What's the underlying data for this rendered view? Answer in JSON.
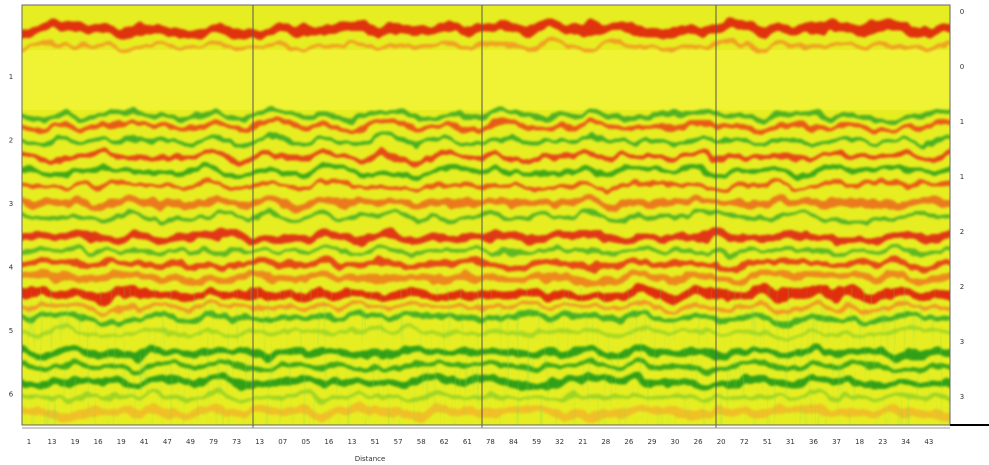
{
  "left_axis": {
    "labels": [
      "1",
      "2",
      "3",
      "4",
      "5",
      "6"
    ]
  },
  "right_axis": {
    "labels": [
      "0",
      "0",
      "1",
      "1",
      "2",
      "2",
      "3",
      "3"
    ]
  },
  "bottom_axis": {
    "title": "Distance",
    "labels": [
      "1",
      "13",
      "19",
      "16",
      "19",
      "41",
      "47",
      "49",
      "79",
      "73",
      "13",
      "07",
      "05",
      "16",
      "13",
      "51",
      "57",
      "58",
      "62",
      "61",
      "78",
      "84",
      "59",
      "32",
      "21",
      "28",
      "26",
      "29",
      "30",
      "26",
      "20",
      "72",
      "51",
      "31",
      "36",
      "37",
      "18",
      "23",
      "34",
      "43"
    ]
  }
}
